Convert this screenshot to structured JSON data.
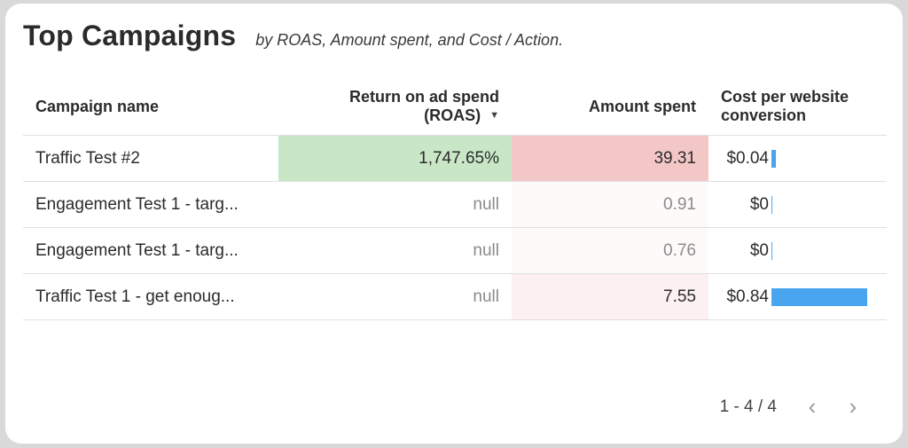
{
  "header": {
    "title": "Top Campaigns",
    "subtitle": "by ROAS, Amount spent, and Cost / Action."
  },
  "table": {
    "columns": {
      "campaign": "Campaign name",
      "roas_line1": "Return on ad spend",
      "roas_line2": "(ROAS)",
      "amount": "Amount spent",
      "cost_line1": "Cost per website",
      "cost_line2": "conversion"
    },
    "rows": [
      {
        "campaign": "Traffic Test #2",
        "roas": "1,747.65%",
        "amount": "39.31",
        "cost": "$0.04",
        "cost_value": 0.04
      },
      {
        "campaign": "Engagement Test 1 - targ...",
        "roas": "null",
        "amount": "0.91",
        "cost": "$0",
        "cost_value": 0
      },
      {
        "campaign": "Engagement Test 1 - targ...",
        "roas": "null",
        "amount": "0.76",
        "cost": "$0",
        "cost_value": 0
      },
      {
        "campaign": "Traffic Test 1 - get enoug...",
        "roas": "null",
        "amount": "7.55",
        "cost": "$0.84",
        "cost_value": 0.84
      }
    ],
    "heatmap_colors": {
      "roas_high": "#c9e7c7",
      "amount_high": "#f4c7c7",
      "amount_mid": "#fdf0f0",
      "amount_low": "#fdfafa",
      "bar": "#4aa5f0"
    }
  },
  "pagination": {
    "range": "1 - 4 / 4",
    "prev_icon": "chevron-left-icon",
    "next_icon": "chevron-right-icon"
  }
}
